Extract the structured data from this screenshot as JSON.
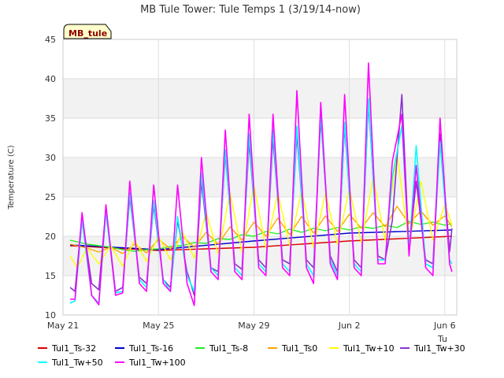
{
  "chart_data": {
    "type": "line",
    "title": "MB Tule Tower: Tule Temps 1 (3/19/14-now)",
    "xlabel": "",
    "ylabel": "Temperature (C)",
    "ylim": [
      10,
      45
    ],
    "yticks": [
      10,
      15,
      20,
      25,
      30,
      35,
      40,
      45
    ],
    "xlim": [
      0,
      16.5
    ],
    "xticks": [
      {
        "day": 0,
        "label": "May 21"
      },
      {
        "day": 4,
        "label": "May 25"
      },
      {
        "day": 8,
        "label": "May 29"
      },
      {
        "day": 12,
        "label": "Jun 2"
      },
      {
        "day": 16,
        "label": "Jun 6"
      }
    ],
    "x_corner_label": "Tu",
    "site_badge": "MB_tule",
    "series": [
      {
        "name": "Tul1_Ts-32",
        "color": "#dd0000",
        "x": [
          0.3,
          4,
          8,
          12,
          16.3
        ],
        "y": [
          18.8,
          18.2,
          18.6,
          19.4,
          20.0
        ]
      },
      {
        "name": "Tul1_Ts-16",
        "color": "#0000cc",
        "x": [
          0.3,
          4,
          8,
          12,
          16.3
        ],
        "y": [
          18.9,
          18.3,
          19.4,
          20.4,
          20.8
        ]
      },
      {
        "name": "Tul1_Ts-8",
        "color": "#22ee22",
        "x": [
          0.3,
          1,
          1.5,
          2,
          2.5,
          3,
          3.5,
          4,
          4.5,
          5,
          5.5,
          6,
          6.5,
          7,
          7.5,
          8,
          8.5,
          9,
          9.5,
          10,
          10.5,
          11,
          11.5,
          12,
          12.5,
          13,
          13.5,
          14,
          14.5,
          15,
          15.5,
          16,
          16.3
        ],
        "y": [
          19.5,
          19.0,
          18.8,
          18.6,
          18.3,
          18.1,
          18.3,
          18.4,
          18.7,
          18.8,
          19.2,
          19.1,
          19.7,
          19.6,
          20.2,
          20.0,
          20.6,
          20.3,
          20.9,
          20.5,
          21.0,
          20.7,
          21.1,
          20.8,
          21.2,
          21.0,
          21.4,
          21.1,
          21.9,
          21.5,
          21.8,
          21.4,
          21.6
        ]
      },
      {
        "name": "Tul1_Ts0",
        "color": "#ffa500",
        "x": [
          0.3,
          1,
          1.5,
          2,
          2.5,
          3,
          3.5,
          4,
          4.5,
          5,
          5.5,
          6,
          6.5,
          7,
          7.5,
          8,
          8.5,
          9,
          9.5,
          10,
          10.5,
          11,
          11.5,
          12,
          12.5,
          13,
          13.5,
          14,
          14.5,
          15,
          15.5,
          16,
          16.3
        ],
        "y": [
          19.0,
          18.5,
          18.0,
          18.6,
          17.8,
          19.0,
          17.9,
          19.6,
          18.4,
          20.0,
          18.6,
          20.5,
          19.0,
          21.2,
          19.5,
          21.8,
          20.0,
          22.3,
          20.2,
          22.5,
          20.4,
          22.6,
          20.6,
          22.8,
          21.0,
          23.0,
          21.2,
          23.8,
          21.6,
          23.2,
          21.4,
          22.6,
          21.2
        ]
      },
      {
        "name": "Tul1_Tw+10",
        "color": "#ffff00",
        "x": [
          0.3,
          0.6,
          1,
          1.5,
          2,
          2.5,
          3,
          3.5,
          4,
          4.5,
          5,
          5.5,
          6,
          6.5,
          7,
          7.5,
          8,
          8.5,
          9,
          9.5,
          10,
          10.5,
          11,
          11.5,
          12,
          12.5,
          13,
          13.5,
          14,
          14.5,
          15,
          15.5,
          16,
          16.3
        ],
        "y": [
          17.5,
          16.0,
          18.5,
          16.5,
          18.8,
          16.2,
          19.5,
          16.8,
          20.0,
          17.0,
          20.6,
          17.2,
          23.0,
          17.8,
          25.5,
          18.0,
          26.5,
          18.5,
          25.5,
          18.8,
          25.8,
          18.6,
          25.5,
          19.0,
          26.0,
          19.2,
          27.5,
          19.5,
          30.5,
          19.0,
          27.0,
          19.5,
          24.0,
          21.5
        ]
      },
      {
        "name": "Tul1_Tw+30",
        "color": "#8833cc",
        "x": [
          0.3,
          0.5,
          0.8,
          1.2,
          1.5,
          1.8,
          2.2,
          2.5,
          2.8,
          3.2,
          3.5,
          3.8,
          4.2,
          4.5,
          4.8,
          5.2,
          5.5,
          5.8,
          6.2,
          6.5,
          6.8,
          7.2,
          7.5,
          7.8,
          8.2,
          8.5,
          8.8,
          9.2,
          9.5,
          9.8,
          10.2,
          10.5,
          10.8,
          11.2,
          11.5,
          11.8,
          12.2,
          12.5,
          12.8,
          13.2,
          13.5,
          13.8,
          14.2,
          14.5,
          14.8,
          15.2,
          15.5,
          15.8,
          16.2,
          16.3
        ],
        "y": [
          13.5,
          13.0,
          22.5,
          14.0,
          13.2,
          23.5,
          13.0,
          13.5,
          25.0,
          14.8,
          14.0,
          24.0,
          14.5,
          13.5,
          22.0,
          15.5,
          12.5,
          27.0,
          16.0,
          15.5,
          30.5,
          16.5,
          15.8,
          32.0,
          17.0,
          16.0,
          32.5,
          17.0,
          16.5,
          33.0,
          17.0,
          16.0,
          35.0,
          17.5,
          15.5,
          34.0,
          17.0,
          16.0,
          37.0,
          17.5,
          17.0,
          22.0,
          38.0,
          18.0,
          27.0,
          17.0,
          16.5,
          33.0,
          18.0,
          21.0
        ]
      },
      {
        "name": "Tul1_Tw+50",
        "color": "#00ffff",
        "x": [
          0.3,
          0.5,
          0.8,
          1.2,
          1.5,
          1.8,
          2.2,
          2.5,
          2.8,
          3.2,
          3.5,
          3.8,
          4.2,
          4.5,
          4.8,
          5.2,
          5.5,
          5.8,
          6.2,
          6.5,
          6.8,
          7.2,
          7.5,
          7.8,
          8.2,
          8.5,
          8.8,
          9.2,
          9.5,
          9.8,
          10.2,
          10.5,
          10.8,
          11.2,
          11.5,
          11.8,
          12.2,
          12.5,
          12.8,
          13.2,
          13.5,
          13.8,
          14.2,
          14.5,
          14.8,
          15.2,
          15.5,
          15.8,
          16.2,
          16.3
        ],
        "y": [
          11.5,
          11.8,
          22.0,
          12.5,
          11.5,
          23.0,
          12.8,
          13.0,
          25.5,
          14.5,
          13.5,
          24.5,
          14.5,
          13.0,
          22.5,
          15.0,
          13.0,
          28.0,
          16.0,
          15.0,
          31.0,
          16.0,
          15.0,
          33.0,
          16.5,
          15.5,
          33.5,
          16.5,
          15.5,
          34.0,
          16.5,
          15.0,
          35.5,
          17.0,
          15.0,
          34.5,
          16.5,
          15.5,
          37.5,
          17.0,
          17.0,
          27.5,
          34.0,
          18.0,
          31.5,
          16.5,
          16.0,
          32.0,
          17.0,
          16.5
        ]
      },
      {
        "name": "Tul1_Tw+100",
        "color": "#ff00ff",
        "x": [
          0.3,
          0.5,
          0.8,
          1.2,
          1.5,
          1.8,
          2.2,
          2.5,
          2.8,
          3.2,
          3.5,
          3.8,
          4.2,
          4.5,
          4.8,
          5.2,
          5.5,
          5.8,
          6.2,
          6.5,
          6.8,
          7.2,
          7.5,
          7.8,
          8.2,
          8.5,
          8.8,
          9.2,
          9.5,
          9.8,
          10.2,
          10.5,
          10.8,
          11.2,
          11.5,
          11.8,
          12.2,
          12.5,
          12.8,
          13.2,
          13.5,
          13.8,
          14.2,
          14.5,
          14.8,
          15.2,
          15.5,
          15.8,
          16.2,
          16.3
        ],
        "y": [
          12.0,
          12.0,
          23.0,
          12.5,
          11.3,
          24.0,
          12.5,
          12.8,
          27.0,
          14.0,
          13.0,
          26.5,
          14.0,
          13.0,
          26.5,
          14.0,
          11.2,
          30.0,
          15.5,
          14.5,
          33.5,
          15.5,
          14.5,
          35.5,
          16.0,
          15.0,
          35.5,
          16.0,
          15.0,
          38.5,
          16.0,
          14.0,
          37.0,
          16.5,
          14.5,
          38.0,
          16.0,
          15.0,
          42.0,
          16.5,
          16.5,
          29.5,
          35.5,
          17.5,
          29.0,
          16.0,
          15.0,
          35.0,
          16.5,
          15.5
        ]
      }
    ]
  }
}
